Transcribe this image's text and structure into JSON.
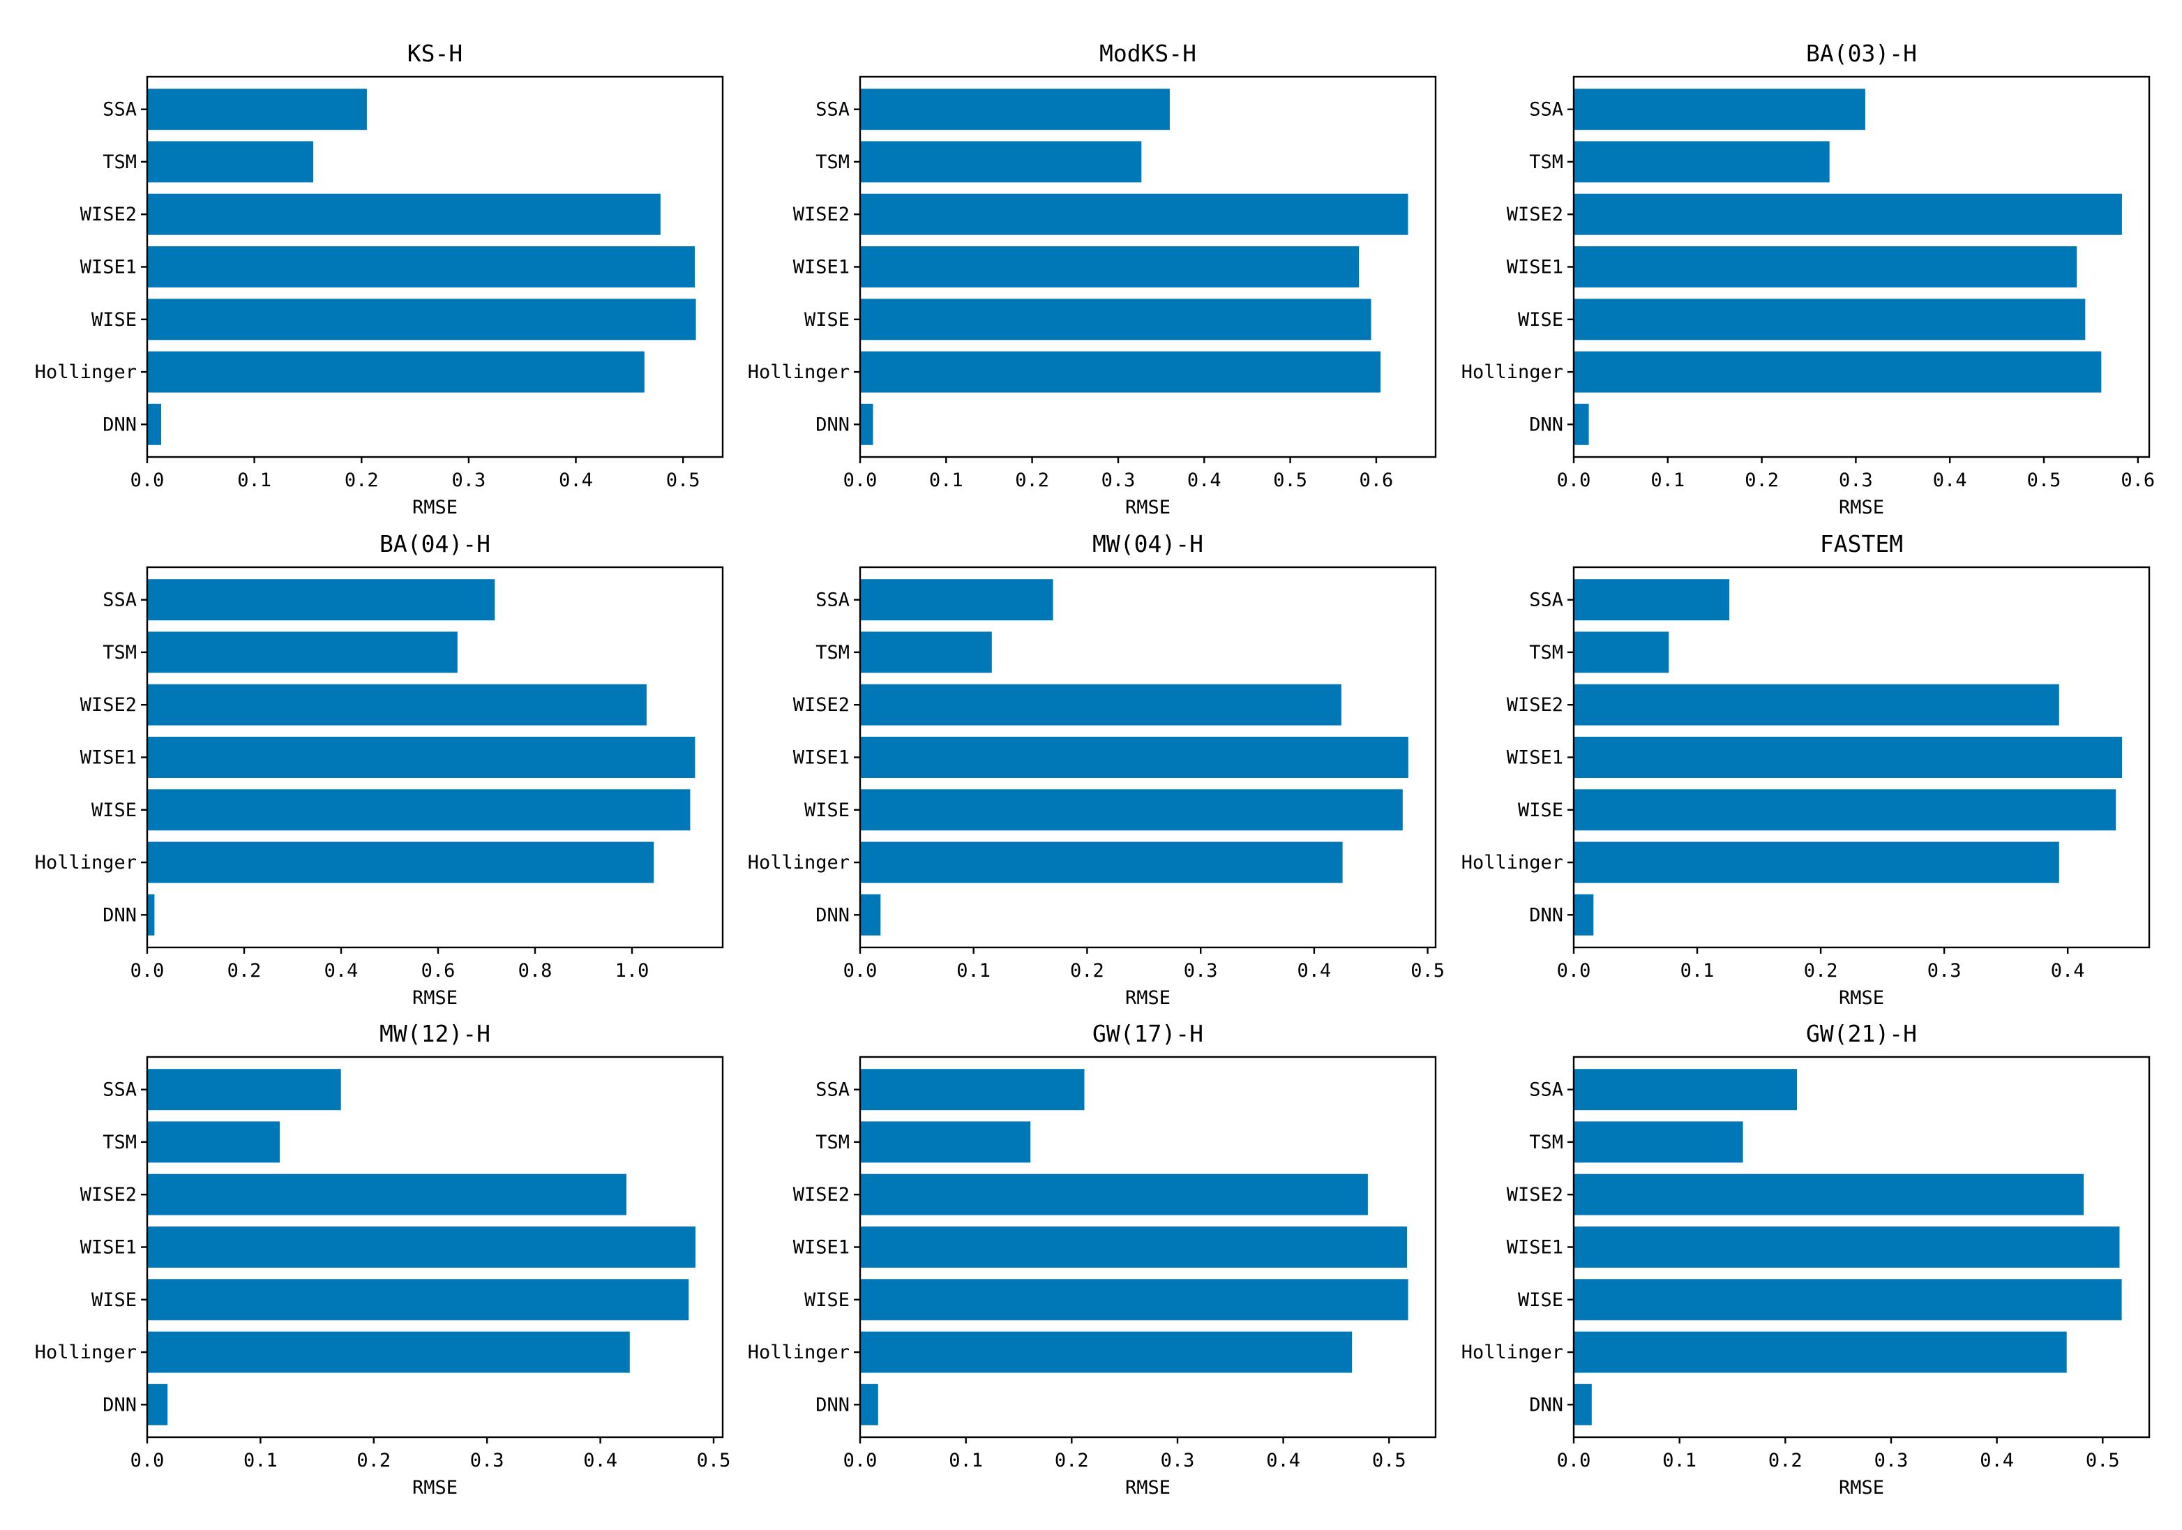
{
  "colors": {
    "bar": "#0077b6",
    "frame": "#000000",
    "background": "#ffffff"
  },
  "chart_data": [
    {
      "type": "bar",
      "orientation": "horizontal",
      "title": "KS-H",
      "xlabel": "RMSE",
      "categories": [
        "DNN",
        "Hollinger",
        "WISE",
        "WISE1",
        "WISE2",
        "TSM",
        "SSA"
      ],
      "values": [
        0.013,
        0.464,
        0.512,
        0.511,
        0.479,
        0.155,
        0.205
      ],
      "xlim": [
        0,
        0.537
      ],
      "xticks": [
        "0.0",
        "0.1",
        "0.2",
        "0.3",
        "0.4",
        "0.5"
      ],
      "grid": false
    },
    {
      "type": "bar",
      "orientation": "horizontal",
      "title": "ModKS-H",
      "xlabel": "RMSE",
      "categories": [
        "DNN",
        "Hollinger",
        "WISE",
        "WISE1",
        "WISE2",
        "TSM",
        "SSA"
      ],
      "values": [
        0.015,
        0.605,
        0.594,
        0.58,
        0.637,
        0.327,
        0.36
      ],
      "xlim": [
        0,
        0.669
      ],
      "xticks": [
        "0.0",
        "0.1",
        "0.2",
        "0.3",
        "0.4",
        "0.5",
        "0.6"
      ],
      "grid": false
    },
    {
      "type": "bar",
      "orientation": "horizontal",
      "title": "BA(03)-H",
      "xlabel": "RMSE",
      "categories": [
        "DNN",
        "Hollinger",
        "WISE",
        "WISE1",
        "WISE2",
        "TSM",
        "SSA"
      ],
      "values": [
        0.016,
        0.561,
        0.544,
        0.535,
        0.583,
        0.272,
        0.31
      ],
      "xlim": [
        0,
        0.612
      ],
      "xticks": [
        "0.0",
        "0.1",
        "0.2",
        "0.3",
        "0.4",
        "0.5",
        "0.6"
      ],
      "grid": false
    },
    {
      "type": "bar",
      "orientation": "horizontal",
      "title": "BA(04)-H",
      "xlabel": "RMSE",
      "categories": [
        "DNN",
        "Hollinger",
        "WISE",
        "WISE1",
        "WISE2",
        "TSM",
        "SSA"
      ],
      "values": [
        0.015,
        1.045,
        1.12,
        1.13,
        1.03,
        0.64,
        0.717
      ],
      "xlim": [
        0,
        1.187
      ],
      "xticks": [
        "0.0",
        "0.2",
        "0.4",
        "0.6",
        "0.8",
        "1.0"
      ],
      "grid": false
    },
    {
      "type": "bar",
      "orientation": "horizontal",
      "title": "MW(04)-H",
      "xlabel": "RMSE",
      "categories": [
        "DNN",
        "Hollinger",
        "WISE",
        "WISE1",
        "WISE2",
        "TSM",
        "SSA"
      ],
      "values": [
        0.018,
        0.425,
        0.478,
        0.483,
        0.424,
        0.116,
        0.17
      ],
      "xlim": [
        0,
        0.507
      ],
      "xticks": [
        "0.0",
        "0.1",
        "0.2",
        "0.3",
        "0.4",
        "0.5"
      ],
      "grid": false
    },
    {
      "type": "bar",
      "orientation": "horizontal",
      "title": "FASTEM",
      "xlabel": "RMSE",
      "categories": [
        "DNN",
        "Hollinger",
        "WISE",
        "WISE1",
        "WISE2",
        "TSM",
        "SSA"
      ],
      "values": [
        0.016,
        0.393,
        0.439,
        0.444,
        0.393,
        0.077,
        0.126
      ],
      "xlim": [
        0,
        0.466
      ],
      "xticks": [
        "0.0",
        "0.1",
        "0.2",
        "0.3",
        "0.4"
      ],
      "grid": false
    },
    {
      "type": "bar",
      "orientation": "horizontal",
      "title": "MW(12)-H",
      "xlabel": "RMSE",
      "categories": [
        "DNN",
        "Hollinger",
        "WISE",
        "WISE1",
        "WISE2",
        "TSM",
        "SSA"
      ],
      "values": [
        0.018,
        0.426,
        0.478,
        0.484,
        0.423,
        0.117,
        0.171
      ],
      "xlim": [
        0,
        0.508
      ],
      "xticks": [
        "0.0",
        "0.1",
        "0.2",
        "0.3",
        "0.4",
        "0.5"
      ],
      "grid": false
    },
    {
      "type": "bar",
      "orientation": "horizontal",
      "title": "GW(17)-H",
      "xlabel": "RMSE",
      "categories": [
        "DNN",
        "Hollinger",
        "WISE",
        "WISE1",
        "WISE2",
        "TSM",
        "SSA"
      ],
      "values": [
        0.017,
        0.465,
        0.518,
        0.517,
        0.48,
        0.161,
        0.212
      ],
      "xlim": [
        0,
        0.544
      ],
      "xticks": [
        "0.0",
        "0.1",
        "0.2",
        "0.3",
        "0.4",
        "0.5"
      ],
      "grid": false
    },
    {
      "type": "bar",
      "orientation": "horizontal",
      "title": "GW(21)-H",
      "xlabel": "RMSE",
      "categories": [
        "DNN",
        "Hollinger",
        "WISE",
        "WISE1",
        "WISE2",
        "TSM",
        "SSA"
      ],
      "values": [
        0.017,
        0.466,
        0.518,
        0.516,
        0.482,
        0.16,
        0.211
      ],
      "xlim": [
        0,
        0.544
      ],
      "xticks": [
        "0.0",
        "0.1",
        "0.2",
        "0.3",
        "0.4",
        "0.5"
      ],
      "grid": false
    }
  ]
}
